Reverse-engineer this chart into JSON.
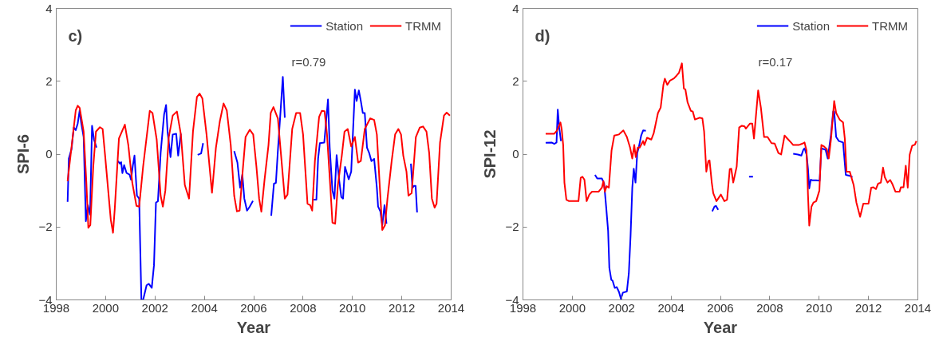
{
  "chart_data": [
    {
      "type": "line",
      "title": "c)",
      "xlabel": "Year",
      "ylabel": "SPI-6",
      "annotations": [
        "r=0.79"
      ],
      "xlim": [
        1998,
        2014
      ],
      "xticks": [
        1998,
        2000,
        2002,
        2004,
        2006,
        2008,
        2010,
        2012,
        2014
      ],
      "ylim": [
        -4,
        4
      ],
      "yticks": [
        -4,
        -2,
        0,
        2,
        4
      ],
      "grid": false,
      "legend": "top right",
      "line_style": "solid",
      "marker": "none",
      "series": [
        {
          "name": "Station",
          "color": "#0000ff",
          "x": [
            1998.46,
            1998.51,
            1998.62,
            1998.71,
            1998.79,
            1998.87,
            1998.95,
            1999.0,
            1999.11,
            1999.2,
            1999.28,
            1999.37,
            1999.45,
            1999.53,
            1999.63,
            1999.7,
            2000.5,
            2000.58,
            2000.63,
            2000.68,
            2000.75,
            2000.85,
            2000.97,
            2001.03,
            2001.1,
            2001.17,
            2001.27,
            2001.36,
            2001.45,
            2001.52,
            2001.66,
            2001.75,
            2001.87,
            2001.96,
            2002.04,
            2002.12,
            2002.23,
            2002.37,
            2002.45,
            2002.51,
            2002.63,
            2002.72,
            2002.86,
            2002.94,
            2003.05,
            2003.4,
            2003.73,
            2003.87,
            2003.95,
            2004.5,
            2005.21,
            2005.34,
            2005.45,
            2005.54,
            2005.62,
            2005.73,
            2005.84,
            2005.97,
            2006.3,
            2006.71,
            2006.82,
            2006.9,
            2006.98,
            2007.08,
            2007.18,
            2007.26,
            2007.8,
            2008.43,
            2008.54,
            2008.61,
            2008.68,
            2008.86,
            2009.01,
            2009.08,
            2009.19,
            2009.27,
            2009.36,
            2009.46,
            2009.55,
            2009.62,
            2009.7,
            2009.85,
            2009.95,
            2010.1,
            2010.17,
            2010.26,
            2010.34,
            2010.42,
            2010.5,
            2010.59,
            2010.68,
            2010.77,
            2010.88,
            2010.99,
            2011.04,
            2011.13,
            2011.21,
            2011.3,
            2011.38,
            2011.9,
            2012.37,
            2012.43,
            2012.5,
            2012.56,
            2012.62
          ],
          "values": [
            -1.31,
            -0.12,
            0.14,
            0.73,
            0.66,
            0.84,
            1.2,
            0.91,
            0.47,
            -1.84,
            -1.4,
            -1.66,
            0.78,
            0.4,
            0.18,
            null,
            -0.19,
            -0.26,
            -0.22,
            -0.52,
            -0.3,
            -0.52,
            -0.56,
            -0.7,
            -0.33,
            -0.04,
            -1.14,
            -1.22,
            -4.0,
            -4.0,
            -3.6,
            -3.56,
            -3.67,
            -3.05,
            -1.33,
            -1.29,
            0.03,
            1.09,
            1.35,
            0.62,
            -0.08,
            0.54,
            0.56,
            -0.04,
            0.56,
            null,
            -0.02,
            0.02,
            0.3,
            null,
            0.08,
            -0.23,
            -0.92,
            -0.56,
            -1.22,
            -1.55,
            -1.44,
            -1.28,
            null,
            -1.69,
            -0.81,
            -0.79,
            0.1,
            1.1,
            2.12,
            1.0,
            null,
            -1.25,
            -1.25,
            -0.12,
            0.3,
            0.32,
            1.5,
            0.18,
            -1.0,
            -1.22,
            -0.03,
            -0.7,
            -1.18,
            -1.22,
            -0.35,
            -0.69,
            -0.48,
            1.77,
            1.46,
            1.75,
            1.46,
            1.13,
            1.13,
            0.18,
            0.03,
            -0.19,
            -0.13,
            -0.92,
            -1.44,
            -1.57,
            -1.95,
            -1.4,
            -1.91,
            null,
            -0.26,
            -0.92,
            -0.87,
            -0.87,
            -1.6
          ]
        },
        {
          "name": "TRMM",
          "color": "#ff0000",
          "x": [
            1998.46,
            1998.79,
            1998.87,
            1998.95,
            1999.11,
            1999.22,
            1999.3,
            1999.38,
            1999.5,
            1999.61,
            1999.77,
            1999.88,
            1999.98,
            2000.21,
            2000.3,
            2000.37,
            2000.54,
            2000.78,
            2000.92,
            2001.08,
            2001.25,
            2001.36,
            2001.52,
            2001.79,
            2001.9,
            2002.07,
            2002.23,
            2002.32,
            2002.42,
            2002.56,
            2002.72,
            2002.89,
            2003.05,
            2003.21,
            2003.38,
            2003.54,
            2003.7,
            2003.81,
            2003.92,
            2004.09,
            2004.31,
            2004.47,
            2004.63,
            2004.78,
            2004.91,
            2005.07,
            2005.21,
            2005.32,
            2005.43,
            2005.56,
            2005.67,
            2005.84,
            2005.98,
            2006.11,
            2006.22,
            2006.31,
            2006.44,
            2006.6,
            2006.69,
            2006.8,
            2006.98,
            2007.26,
            2007.37,
            2007.56,
            2007.72,
            2007.88,
            2008.0,
            2008.18,
            2008.29,
            2008.37,
            2008.48,
            2008.65,
            2008.76,
            2008.87,
            2008.97,
            2009.12,
            2009.19,
            2009.3,
            2009.41,
            2009.57,
            2009.68,
            2009.81,
            2009.95,
            2010.1,
            2010.23,
            2010.34,
            2010.5,
            2010.72,
            2010.88,
            2010.99,
            2011.1,
            2011.21,
            2011.32,
            2011.42,
            2011.59,
            2011.73,
            2011.86,
            2011.97,
            2012.06,
            2012.19,
            2012.27,
            2012.4,
            2012.57,
            2012.73,
            2012.86,
            2013.0,
            2013.11,
            2013.22,
            2013.33,
            2013.41,
            2013.55,
            2013.71,
            2013.82,
            2013.95
          ],
          "values": [
            -0.74,
            1.2,
            1.33,
            1.27,
            0.62,
            -0.78,
            -2.02,
            -1.95,
            -0.34,
            0.62,
            0.74,
            0.69,
            -0.04,
            -1.8,
            -2.16,
            -1.51,
            0.43,
            0.81,
            0.25,
            -0.78,
            -1.42,
            -1.44,
            -0.34,
            1.19,
            1.13,
            0.4,
            -1.14,
            -1.44,
            -1.0,
            0.47,
            1.06,
            1.17,
            0.54,
            -0.85,
            -1.22,
            0.62,
            1.57,
            1.66,
            1.53,
            0.54,
            -1.06,
            0.18,
            0.91,
            1.39,
            1.2,
            0.25,
            -1.14,
            -1.57,
            -1.55,
            -0.41,
            0.47,
            0.67,
            0.54,
            -0.34,
            -1.22,
            -1.58,
            -0.7,
            0.25,
            1.13,
            1.29,
            0.98,
            -1.22,
            -1.11,
            0.69,
            1.13,
            1.13,
            0.54,
            -1.36,
            -1.4,
            -1.55,
            -0.19,
            1.02,
            1.19,
            1.18,
            0.54,
            -1.07,
            -1.88,
            -1.91,
            -0.85,
            -0.04,
            0.62,
            0.69,
            0.21,
            0.47,
            -0.23,
            -0.19,
            0.69,
            0.98,
            0.94,
            0.54,
            -0.78,
            -2.08,
            -1.95,
            -1.22,
            -0.19,
            0.54,
            0.69,
            0.54,
            -0.04,
            -0.48,
            -1.14,
            -1.07,
            0.47,
            0.73,
            0.76,
            0.62,
            0.03,
            -1.22,
            -1.47,
            -1.36,
            0.32,
            1.06,
            1.14,
            1.06
          ]
        }
      ]
    },
    {
      "type": "line",
      "title": "d)",
      "xlabel": "Year",
      "ylabel": "SPI-12",
      "annotations": [
        "r=0.17"
      ],
      "xlim": [
        1998,
        2014
      ],
      "xticks": [
        1998,
        2000,
        2002,
        2004,
        2006,
        2008,
        2010,
        2012,
        2014
      ],
      "ylim": [
        -4,
        4
      ],
      "yticks": [
        -4,
        -2,
        0,
        2,
        4
      ],
      "grid": false,
      "legend": "top right",
      "line_style": "solid",
      "marker": "none",
      "series": [
        {
          "name": "Station",
          "color": "#0000ff",
          "x": [
            1998.92,
            1999.16,
            1999.27,
            1999.36,
            1999.41,
            1999.47,
            1999.54,
            2000.2,
            2000.92,
            2001.01,
            2001.2,
            2001.29,
            2001.37,
            2001.45,
            2001.5,
            2001.58,
            2001.63,
            2001.72,
            2001.8,
            2001.89,
            2001.97,
            2002.05,
            2002.21,
            2002.29,
            2002.36,
            2002.43,
            2002.49,
            2002.56,
            2002.63,
            2002.7,
            2002.79,
            2002.87,
            2002.98,
            2004.0,
            2005.67,
            2005.76,
            2005.82,
            2005.91,
            2006.5,
            2007.16,
            2007.32,
            2008.0,
            2008.95,
            2009.14,
            2009.28,
            2009.36,
            2009.41,
            2009.49,
            2009.55,
            2009.6,
            2009.66,
            2009.73,
            2009.88,
            2010.02,
            2010.09,
            2010.26,
            2010.35,
            2010.48,
            2010.57,
            2010.61,
            2010.69,
            2010.8,
            2010.97,
            2011.08,
            2011.22,
            2011.35
          ],
          "values": [
            0.31,
            0.32,
            0.28,
            0.32,
            1.22,
            0.73,
            0.36,
            null,
            -0.57,
            -0.67,
            -0.67,
            -0.81,
            -1.44,
            -2.1,
            -3.12,
            -3.45,
            -3.47,
            -3.67,
            -3.65,
            -3.78,
            -3.97,
            -3.8,
            -3.77,
            -3.27,
            -2.24,
            -0.92,
            -0.4,
            -0.78,
            0.03,
            0.21,
            0.51,
            0.65,
            0.64,
            null,
            -1.57,
            -1.44,
            -1.42,
            -1.53,
            null,
            -0.62,
            -0.62,
            null,
            0.01,
            -0.01,
            -0.04,
            0.12,
            0.16,
            -0.01,
            -0.41,
            -0.94,
            -0.7,
            -0.72,
            -0.72,
            -0.73,
            0.16,
            0.12,
            -0.12,
            0.54,
            1.17,
            1.17,
            0.47,
            0.36,
            0.32,
            -0.57,
            -0.59,
            -0.63
          ]
        },
        {
          "name": "TRMM",
          "color": "#ff0000",
          "x": [
            1998.92,
            1999.27,
            1999.38,
            1999.52,
            1999.57,
            1999.63,
            1999.68,
            1999.76,
            1999.87,
            2000.25,
            2000.34,
            2000.41,
            2000.49,
            2000.58,
            2000.69,
            2000.8,
            2001.07,
            2001.2,
            2001.26,
            2001.32,
            2001.39,
            2001.48,
            2001.59,
            2001.7,
            2001.89,
            2002.07,
            2002.21,
            2002.34,
            2002.43,
            2002.51,
            2002.57,
            2002.65,
            2002.73,
            2002.87,
            2002.92,
            2003.03,
            2003.2,
            2003.3,
            2003.47,
            2003.58,
            2003.69,
            2003.75,
            2003.85,
            2003.96,
            2004.12,
            2004.23,
            2004.32,
            2004.44,
            2004.52,
            2004.58,
            2004.67,
            2004.8,
            2004.88,
            2004.97,
            2005.16,
            2005.27,
            2005.34,
            2005.43,
            2005.51,
            2005.56,
            2005.65,
            2005.71,
            2005.84,
            2006.02,
            2006.16,
            2006.27,
            2006.38,
            2006.44,
            2006.52,
            2006.66,
            2006.76,
            2006.87,
            2006.98,
            2007.03,
            2007.2,
            2007.29,
            2007.36,
            2007.53,
            2007.64,
            2007.77,
            2007.91,
            2008.07,
            2008.2,
            2008.35,
            2008.46,
            2008.6,
            2008.75,
            2008.86,
            2008.95,
            2009.17,
            2009.33,
            2009.41,
            2009.49,
            2009.55,
            2009.6,
            2009.69,
            2009.77,
            2009.88,
            2010.01,
            2010.09,
            2010.2,
            2010.31,
            2010.39,
            2010.48,
            2010.61,
            2010.69,
            2010.83,
            2010.97,
            2011.04,
            2011.11,
            2011.24,
            2011.4,
            2011.51,
            2011.66,
            2011.79,
            2012.0,
            2012.11,
            2012.2,
            2012.3,
            2012.39,
            2012.5,
            2012.59,
            2012.66,
            2012.77,
            2012.88,
            2012.96,
            2013.09,
            2013.26,
            2013.31,
            2013.42,
            2013.51,
            2013.59,
            2013.67,
            2013.77,
            2013.88,
            2013.94
          ],
          "values": [
            0.56,
            0.56,
            0.65,
            0.87,
            0.68,
            0.25,
            -0.78,
            -1.25,
            -1.29,
            -1.29,
            -0.65,
            -0.62,
            -0.7,
            -1.29,
            -1.11,
            -1.03,
            -1.03,
            -0.92,
            -0.74,
            -1.03,
            -0.88,
            -0.92,
            0.1,
            0.51,
            0.54,
            0.65,
            0.47,
            0.18,
            -0.12,
            0.25,
            -0.08,
            0.18,
            0.18,
            0.36,
            0.25,
            0.45,
            0.4,
            0.58,
            1.13,
            1.28,
            1.9,
            2.07,
            1.9,
            2.02,
            2.08,
            2.16,
            2.23,
            2.49,
            1.8,
            1.78,
            1.42,
            1.19,
            1.17,
            0.95,
            1.0,
            0.98,
            0.62,
            -0.48,
            -0.19,
            -0.17,
            -0.78,
            -1.07,
            -1.29,
            -1.11,
            -1.29,
            -1.25,
            -0.41,
            -0.4,
            -0.78,
            -0.34,
            0.73,
            0.78,
            0.76,
            0.7,
            0.84,
            0.84,
            0.43,
            1.75,
            1.28,
            0.47,
            0.47,
            0.3,
            0.29,
            0.03,
            -0.01,
            0.51,
            0.4,
            0.32,
            0.25,
            0.25,
            0.29,
            0.32,
            0.1,
            -1.14,
            -1.96,
            -1.44,
            -1.33,
            -1.29,
            -1.0,
            0.25,
            0.21,
            0.14,
            -0.12,
            0.4,
            1.46,
            1.13,
            0.95,
            0.87,
            0.43,
            -0.48,
            -0.48,
            -0.85,
            -1.33,
            -1.72,
            -1.36,
            -1.36,
            -0.92,
            -0.91,
            -0.96,
            -0.81,
            -0.78,
            -0.37,
            -0.63,
            -0.78,
            -0.71,
            -0.81,
            -1.03,
            -1.03,
            -0.91,
            -0.91,
            -0.32,
            -0.92,
            -0.01,
            0.23,
            0.26,
            0.36
          ]
        }
      ]
    }
  ]
}
